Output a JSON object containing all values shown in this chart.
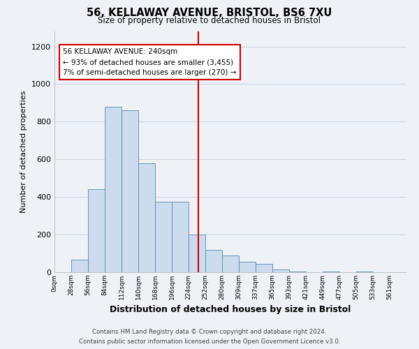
{
  "title": "56, KELLAWAY AVENUE, BRISTOL, BS6 7XU",
  "subtitle": "Size of property relative to detached houses in Bristol",
  "xlabel": "Distribution of detached houses by size in Bristol",
  "ylabel": "Number of detached properties",
  "bar_color": "#ccdcee",
  "bar_edge_color": "#5588aa",
  "bin_labels": [
    "0sqm",
    "28sqm",
    "56sqm",
    "84sqm",
    "112sqm",
    "140sqm",
    "168sqm",
    "196sqm",
    "224sqm",
    "252sqm",
    "280sqm",
    "309sqm",
    "337sqm",
    "365sqm",
    "393sqm",
    "421sqm",
    "449sqm",
    "477sqm",
    "505sqm",
    "533sqm",
    "561sqm"
  ],
  "bar_heights": [
    0,
    65,
    440,
    880,
    860,
    580,
    375,
    375,
    200,
    120,
    90,
    55,
    45,
    15,
    5,
    0,
    5,
    0,
    5,
    0,
    0
  ],
  "vline_x": 8.571,
  "vline_color": "#cc0000",
  "ylim": [
    0,
    1280
  ],
  "yticks": [
    0,
    200,
    400,
    600,
    800,
    1000,
    1200
  ],
  "annotation_title": "56 KELLAWAY AVENUE: 240sqm",
  "annotation_line1": "← 93% of detached houses are smaller (3,455)",
  "annotation_line2": "7% of semi-detached houses are larger (270) →",
  "annotation_box_color": "#ffffff",
  "annotation_box_edge": "#cc0000",
  "footer_line1": "Contains HM Land Registry data © Crown copyright and database right 2024.",
  "footer_line2": "Contains public sector information licensed under the Open Government Licence v3.0.",
  "background_color": "#eef2f7",
  "plot_bg_color": "#eef2f7",
  "grid_color": "#c8d4e0"
}
